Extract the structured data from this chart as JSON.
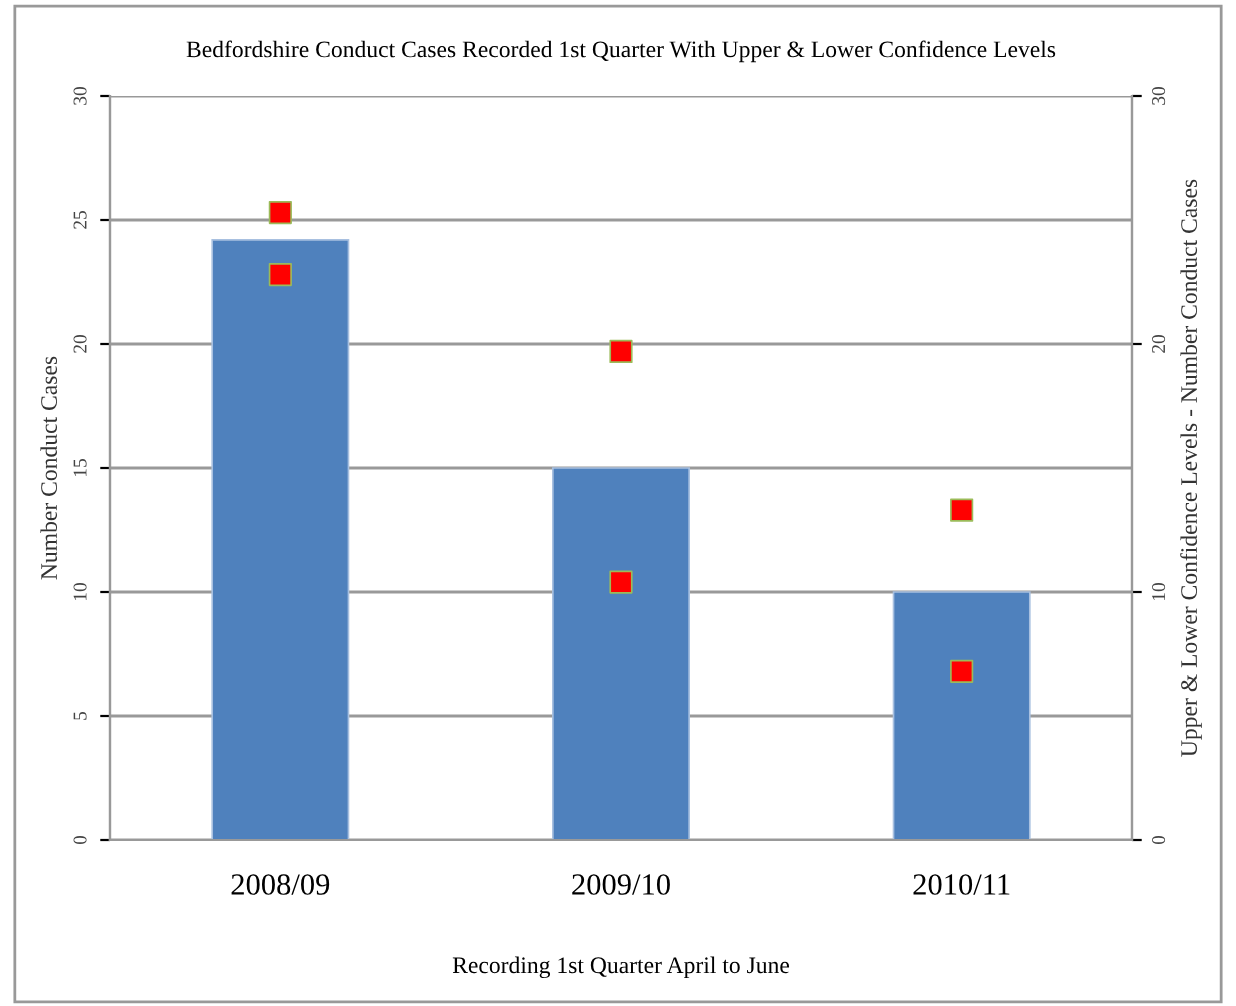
{
  "chart_data": {
    "type": "bar",
    "title": "Bedfordshire Conduct Cases Recorded 1st Quarter With Upper & Lower Confidence Levels",
    "xlabel": "Recording 1st Quarter April to June",
    "ylabel": "Number Conduct Cases",
    "y2label": "Upper & Lower Confidence Levels - Number Conduct Cases",
    "categories": [
      "2008/09",
      "2009/10",
      "2010/11"
    ],
    "series": [
      {
        "color": "#4f81bd",
        "values": [
          24.2,
          15,
          10
        ]
      },
      {
        "type": "scatter",
        "color": "#ff0000",
        "x": [
          "2008/09",
          "2009/10",
          "2010/11"
        ],
        "values": [
          25.3,
          19.7,
          13.3
        ]
      },
      {
        "type": "scatter",
        "color": "#ff0000",
        "x": [
          "2008/09",
          "2009/10",
          "2010/11"
        ],
        "values": [
          22.8,
          10.4,
          6.8
        ]
      }
    ],
    "marker": "square",
    "ylim": [
      0,
      30
    ],
    "yticks": [
      0,
      5,
      10,
      15,
      20,
      25,
      30
    ],
    "y2lim": [
      0,
      30
    ],
    "y2ticks": [
      0,
      10,
      20,
      30
    ],
    "grid": "y",
    "legend": false
  }
}
